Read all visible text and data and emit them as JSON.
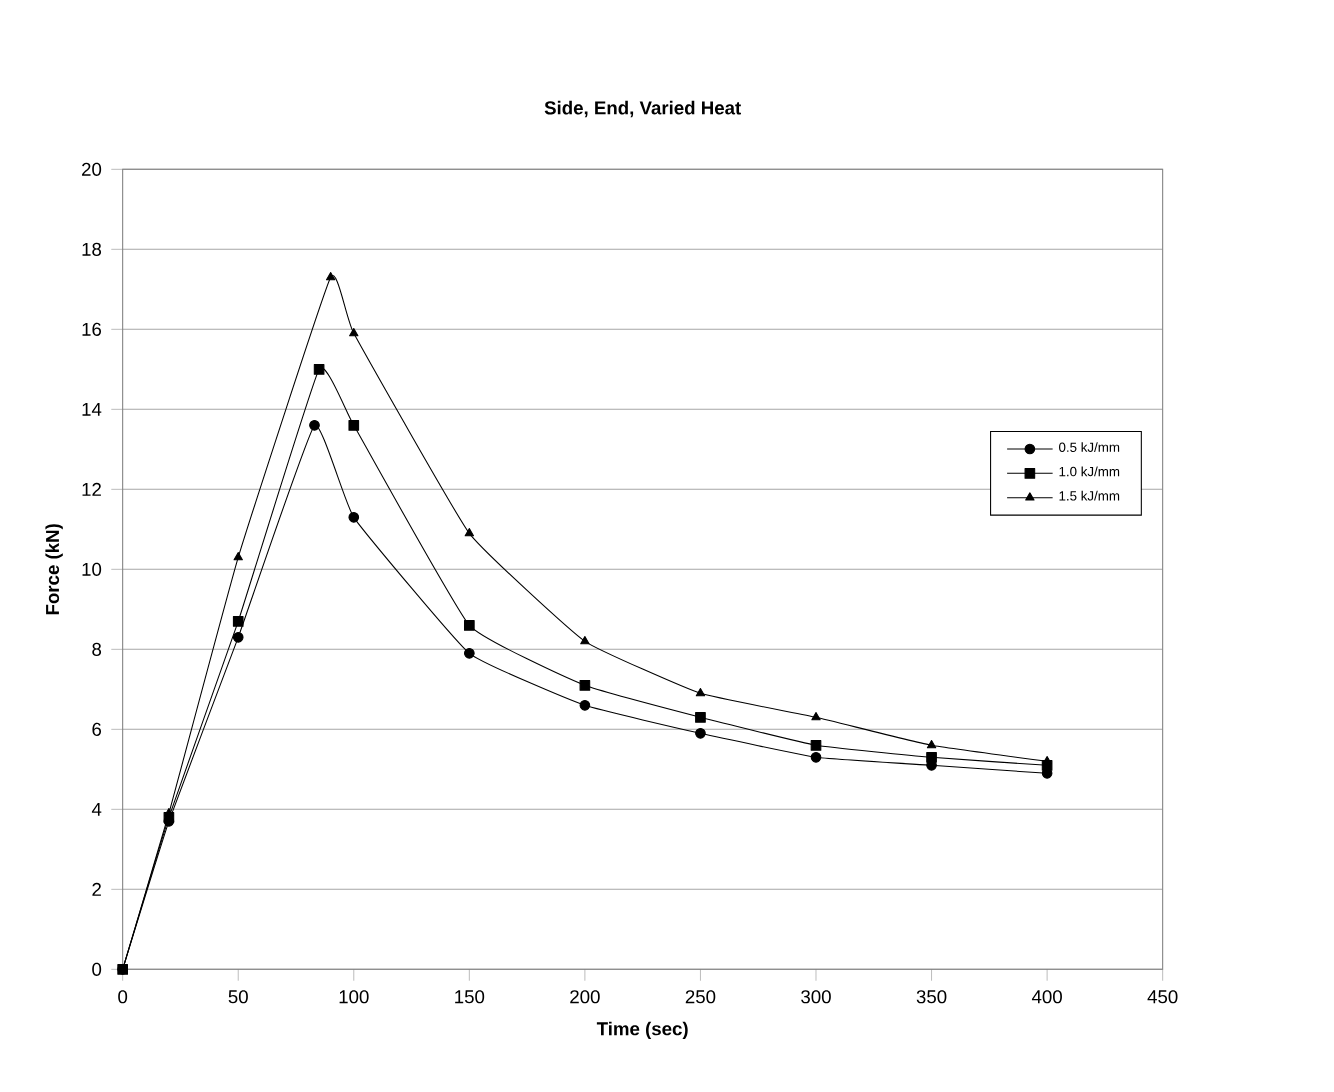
{
  "chart_data": {
    "type": "line",
    "title": "Side, End, Varied Heat",
    "xlabel": "Time (sec)",
    "ylabel": "Force (kN)",
    "xlim": [
      0,
      450
    ],
    "xticks": [
      0,
      50,
      100,
      150,
      200,
      250,
      300,
      350,
      400,
      450
    ],
    "ylim": [
      0,
      20
    ],
    "yticks": [
      0,
      2,
      4,
      6,
      8,
      10,
      12,
      14,
      16,
      18,
      20
    ],
    "grid": "y",
    "legend": "right",
    "line_style": "solid",
    "series": [
      {
        "name": "0.5 kJ/mm",
        "color": "#000000",
        "marker": "circle",
        "x": [
          0,
          20,
          50,
          83,
          100,
          150,
          200,
          250,
          300,
          350,
          400
        ],
        "values": [
          0,
          3.7,
          8.3,
          13.6,
          11.3,
          7.9,
          6.6,
          5.9,
          5.3,
          5.1,
          4.9
        ]
      },
      {
        "name": "1.0 kJ/mm",
        "color": "#000000",
        "marker": "square",
        "x": [
          0,
          20,
          50,
          85,
          100,
          150,
          200,
          250,
          300,
          350,
          400
        ],
        "values": [
          0,
          3.8,
          8.7,
          15.0,
          13.6,
          8.6,
          7.1,
          6.3,
          5.6,
          5.3,
          5.1
        ]
      },
      {
        "name": "1.5 kJ/mm",
        "color": "#000000",
        "marker": "triangle",
        "x": [
          0,
          20,
          50,
          90,
          100,
          150,
          200,
          250,
          300,
          350,
          400
        ],
        "values": [
          0,
          3.9,
          10.3,
          17.3,
          15.9,
          10.9,
          8.2,
          6.9,
          6.3,
          5.6,
          5.2
        ]
      }
    ]
  }
}
